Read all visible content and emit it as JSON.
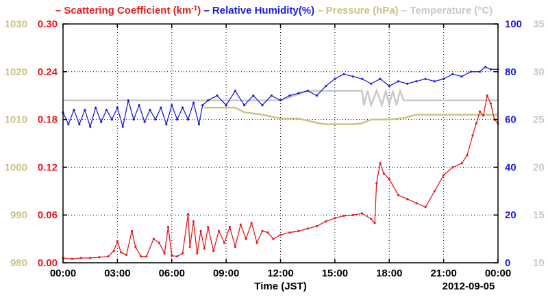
{
  "chart_data": {
    "type": "line",
    "title_parts": [
      {
        "text": "– Scattering Coefficient (km",
        "color": "#e41a1c"
      },
      {
        "text": "-1",
        "color": "#e41a1c",
        "sup": true
      },
      {
        "text": ")",
        "color": "#e41a1c"
      },
      {
        "text": " – Relative Humidity(%)",
        "color": "#1a1adc"
      },
      {
        "text": " – Pressure (hPa)",
        "color": "#cbc282"
      },
      {
        "text": " – Temperature (°C)",
        "color": "#c8c8c8"
      }
    ],
    "xlabel": "Time (JST)",
    "date_label": "2012-09-05",
    "x_ticks": [
      "00:00",
      "03:00",
      "06:00",
      "09:00",
      "12:00",
      "15:00",
      "18:00",
      "21:00",
      "00:00"
    ],
    "xlim_hours": [
      0,
      24
    ],
    "grid": true,
    "axes": {
      "scattering": {
        "ticks": [
          "0.00",
          "0.06",
          "0.12",
          "0.18",
          "0.24",
          "0.30"
        ],
        "lim": [
          0,
          0.3
        ],
        "color": "#e41a1c",
        "side": "left-inner"
      },
      "pressure": {
        "ticks": [
          "980",
          "990",
          "1000",
          "1010",
          "1020",
          "1030"
        ],
        "lim": [
          980,
          1030
        ],
        "color": "#cbc282",
        "side": "left-outer"
      },
      "humidity": {
        "ticks": [
          "0",
          "20",
          "40",
          "60",
          "80",
          "100"
        ],
        "lim": [
          0,
          100
        ],
        "color": "#1a1adc",
        "side": "right-inner"
      },
      "temperature": {
        "ticks": [
          "10",
          "15",
          "20",
          "25",
          "30",
          "35"
        ],
        "lim": [
          10,
          35
        ],
        "color": "#c8c8c8",
        "side": "right-outer"
      }
    },
    "series": [
      {
        "name": "Scattering Coefficient (km-1)",
        "axis": "scattering",
        "color": "#e41a1c",
        "markers": true,
        "x": [
          0,
          0.5,
          1,
          1.5,
          2,
          2.5,
          2.8,
          3.0,
          3.2,
          3.5,
          3.8,
          4.0,
          4.3,
          4.6,
          5.0,
          5.3,
          5.6,
          5.8,
          6.0,
          6.3,
          6.6,
          6.9,
          7.0,
          7.2,
          7.4,
          7.6,
          7.8,
          8.0,
          8.3,
          8.6,
          8.9,
          9.2,
          9.5,
          9.8,
          10.1,
          10.4,
          10.7,
          11.0,
          11.3,
          11.6,
          12,
          12.5,
          13,
          13.5,
          14,
          14.5,
          15,
          15.5,
          16,
          16.5,
          17.0,
          17.2,
          17.3,
          17.5,
          17.7,
          18,
          18.5,
          19,
          19.5,
          20,
          20.5,
          21,
          21.5,
          22,
          22.3,
          22.6,
          22.8,
          23.0,
          23.2,
          23.4,
          23.6,
          23.8,
          24
        ],
        "y": [
          0.006,
          0.005,
          0.006,
          0.006,
          0.007,
          0.008,
          0.015,
          0.027,
          0.013,
          0.01,
          0.04,
          0.02,
          0.008,
          0.008,
          0.03,
          0.025,
          0.012,
          0.045,
          0.009,
          0.008,
          0.012,
          0.061,
          0.02,
          0.052,
          0.012,
          0.04,
          0.018,
          0.045,
          0.015,
          0.04,
          0.025,
          0.045,
          0.02,
          0.048,
          0.03,
          0.05,
          0.025,
          0.04,
          0.038,
          0.03,
          0.035,
          0.038,
          0.04,
          0.043,
          0.046,
          0.052,
          0.056,
          0.059,
          0.06,
          0.062,
          0.055,
          0.05,
          0.1,
          0.125,
          0.112,
          0.105,
          0.085,
          0.08,
          0.075,
          0.07,
          0.09,
          0.11,
          0.12,
          0.125,
          0.135,
          0.16,
          0.175,
          0.19,
          0.185,
          0.21,
          0.2,
          0.18,
          0.175
        ]
      },
      {
        "name": "Relative Humidity(%)",
        "axis": "humidity",
        "color": "#1a1adc",
        "markers": true,
        "x": [
          0,
          0.3,
          0.6,
          0.9,
          1.2,
          1.5,
          1.8,
          2.1,
          2.4,
          2.7,
          3.0,
          3.3,
          3.6,
          3.9,
          4.2,
          4.5,
          4.8,
          5.1,
          5.4,
          5.7,
          6.0,
          6.3,
          6.6,
          6.9,
          7.2,
          7.5,
          7.7,
          8.0,
          8.5,
          9.0,
          9.5,
          10.0,
          10.5,
          11.0,
          11.5,
          12,
          12.5,
          13,
          13.5,
          14,
          14.5,
          15,
          15.5,
          16,
          16.5,
          17,
          17.5,
          18,
          18.5,
          19,
          19.5,
          20,
          20.5,
          21,
          21.5,
          22,
          22.5,
          23,
          23.3,
          23.6,
          24
        ],
        "y": [
          63,
          58,
          64,
          58,
          64,
          57,
          65,
          59,
          64,
          60,
          65,
          57,
          68,
          60,
          66,
          59,
          64,
          60,
          65,
          58,
          66,
          60,
          65,
          60,
          67,
          58,
          66,
          68,
          70,
          66,
          72,
          66,
          70,
          66,
          70,
          68,
          70,
          71,
          72,
          70,
          74,
          77,
          79,
          78,
          77,
          75,
          77,
          74,
          76,
          75,
          76,
          77,
          76,
          77,
          79,
          78,
          80,
          80,
          82,
          81,
          81
        ]
      },
      {
        "name": "Pressure (hPa)",
        "axis": "pressure",
        "color": "#cbc282",
        "markers": false,
        "x": [
          7.8,
          9.5,
          10.0,
          11.0,
          12.0,
          13.0,
          14.0,
          14.5,
          15.0,
          16.0,
          16.5,
          17.0,
          18.0,
          18.8,
          19.5,
          20.5,
          21.5,
          22.5,
          23.5,
          24
        ],
        "y": [
          1012.5,
          1012.5,
          1011.5,
          1011.0,
          1010.2,
          1010.2,
          1009.3,
          1009.0,
          1009.0,
          1009.0,
          1009.2,
          1010.0,
          1010.0,
          1010.3,
          1011.0,
          1011.0,
          1011.0,
          1011.0,
          1011.0,
          1011.0
        ]
      },
      {
        "name": "Temperature (°C)",
        "axis": "temperature",
        "color": "#c8c8c8",
        "markers": false,
        "x": [
          0,
          3,
          6,
          7.8,
          10,
          12,
          13.5,
          15,
          16.5,
          16.6,
          16.8,
          17.0,
          17.3,
          17.6,
          17.8,
          18.0,
          18.2,
          18.4,
          18.6,
          18.8,
          19,
          21,
          24
        ],
        "y": [
          27,
          27,
          27,
          27,
          27,
          27,
          28,
          28,
          28,
          26.5,
          28,
          26.5,
          28,
          26.5,
          28,
          26.5,
          28,
          26.5,
          28,
          27,
          27,
          27,
          27
        ]
      }
    ]
  }
}
